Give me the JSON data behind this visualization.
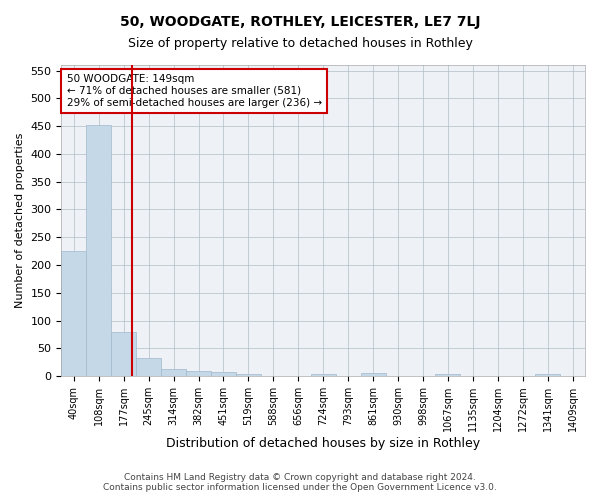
{
  "title1": "50, WOODGATE, ROTHLEY, LEICESTER, LE7 7LJ",
  "title2": "Size of property relative to detached houses in Rothley",
  "xlabel": "Distribution of detached houses by size in Rothley",
  "ylabel": "Number of detached properties",
  "footer1": "Contains HM Land Registry data © Crown copyright and database right 2024.",
  "footer2": "Contains public sector information licensed under the Open Government Licence v3.0.",
  "annotation_line1": "50 WOODGATE: 149sqm",
  "annotation_line2": "← 71% of detached houses are smaller (581)",
  "annotation_line3": "29% of semi-detached houses are larger (236) →",
  "bar_color": "#c5d8e8",
  "bar_edge_color": "#a0b8cc",
  "grid_color": "#b0bec5",
  "vline_color": "#cc0000",
  "background_color": "#eef2f7",
  "bins": [
    "40sqm",
    "108sqm",
    "177sqm",
    "245sqm",
    "314sqm",
    "382sqm",
    "451sqm",
    "519sqm",
    "588sqm",
    "656sqm",
    "724sqm",
    "793sqm",
    "861sqm",
    "930sqm",
    "998sqm",
    "1067sqm",
    "1135sqm",
    "1204sqm",
    "1272sqm",
    "1341sqm"
  ],
  "values": [
    225,
    452,
    80,
    32,
    12,
    9,
    7,
    4,
    0,
    0,
    4,
    0,
    5,
    0,
    0,
    4,
    0,
    0,
    0,
    4
  ],
  "vline_position": 2.35,
  "ylim": [
    0,
    560
  ],
  "yticks": [
    0,
    50,
    100,
    150,
    200,
    250,
    300,
    350,
    400,
    450,
    500,
    550
  ],
  "xlim_right_label": "1409sqm"
}
